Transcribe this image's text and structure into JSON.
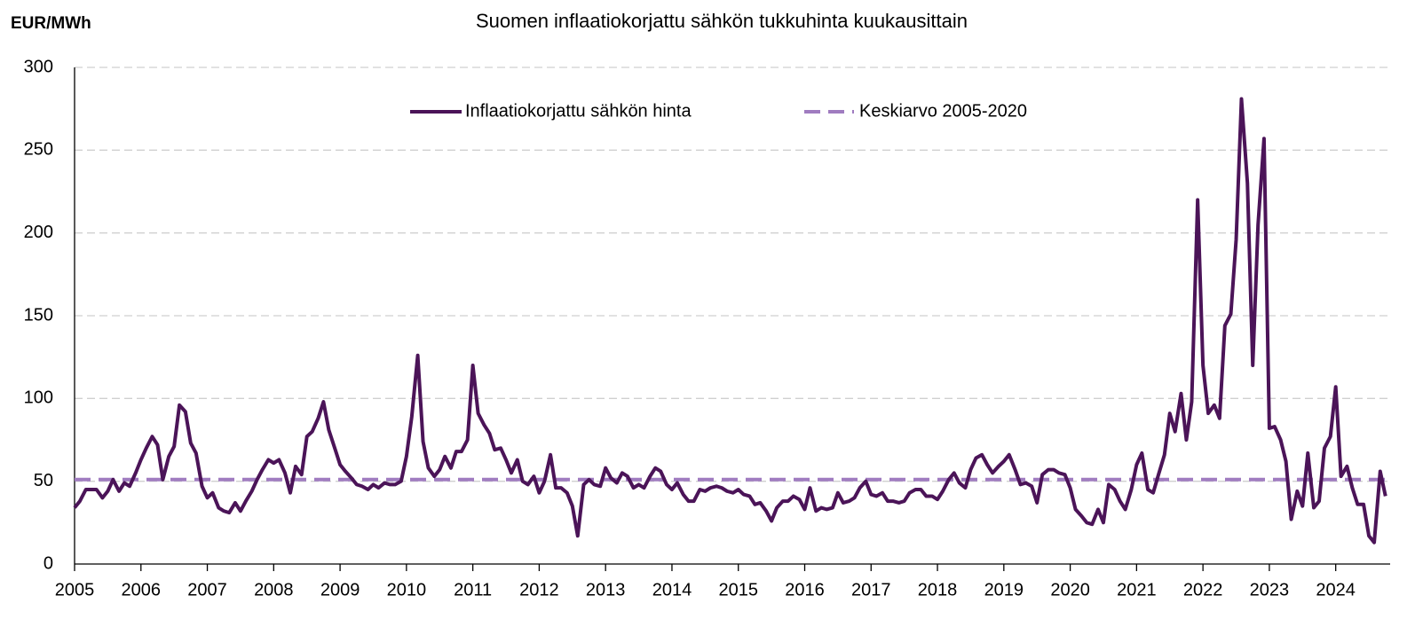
{
  "chart_data": {
    "type": "line",
    "title": "Suomen inflaatiokorjattu sähkön tukkuhinta kuukausittain",
    "y_label": "EUR/MWh",
    "xlim": [
      2005,
      2024.82
    ],
    "xticks": [
      2005,
      2006,
      2007,
      2008,
      2009,
      2010,
      2011,
      2012,
      2013,
      2014,
      2015,
      2016,
      2017,
      2018,
      2019,
      2020,
      2021,
      2022,
      2023,
      2024
    ],
    "ylim": [
      0,
      300
    ],
    "yticks": [
      0,
      50,
      100,
      150,
      200,
      250,
      300
    ],
    "grid": true,
    "legend": "top",
    "x": [
      2005,
      2005.08,
      2005.17,
      2005.25,
      2005.33,
      2005.42,
      2005.5,
      2005.58,
      2005.67,
      2005.75,
      2005.83,
      2005.92,
      2006,
      2006.08,
      2006.17,
      2006.25,
      2006.33,
      2006.42,
      2006.5,
      2006.58,
      2006.67,
      2006.75,
      2006.83,
      2006.92,
      2007,
      2007.08,
      2007.17,
      2007.25,
      2007.33,
      2007.42,
      2007.5,
      2007.58,
      2007.67,
      2007.75,
      2007.83,
      2007.92,
      2008,
      2008.08,
      2008.17,
      2008.25,
      2008.33,
      2008.42,
      2008.5,
      2008.58,
      2008.67,
      2008.75,
      2008.83,
      2008.92,
      2009,
      2009.08,
      2009.17,
      2009.25,
      2009.33,
      2009.42,
      2009.5,
      2009.58,
      2009.67,
      2009.75,
      2009.83,
      2009.92,
      2010,
      2010.08,
      2010.17,
      2010.25,
      2010.33,
      2010.42,
      2010.5,
      2010.58,
      2010.67,
      2010.75,
      2010.83,
      2010.92,
      2011,
      2011.08,
      2011.17,
      2011.25,
      2011.33,
      2011.42,
      2011.5,
      2011.58,
      2011.67,
      2011.75,
      2011.83,
      2011.92,
      2012,
      2012.08,
      2012.17,
      2012.25,
      2012.33,
      2012.42,
      2012.5,
      2012.58,
      2012.67,
      2012.75,
      2012.83,
      2012.92,
      2013,
      2013.08,
      2013.17,
      2013.25,
      2013.33,
      2013.42,
      2013.5,
      2013.58,
      2013.67,
      2013.75,
      2013.83,
      2013.92,
      2014,
      2014.08,
      2014.17,
      2014.25,
      2014.33,
      2014.42,
      2014.5,
      2014.58,
      2014.67,
      2014.75,
      2014.83,
      2014.92,
      2015,
      2015.08,
      2015.17,
      2015.25,
      2015.33,
      2015.42,
      2015.5,
      2015.58,
      2015.67,
      2015.75,
      2015.83,
      2015.92,
      2016,
      2016.08,
      2016.17,
      2016.25,
      2016.33,
      2016.42,
      2016.5,
      2016.58,
      2016.67,
      2016.75,
      2016.83,
      2016.92,
      2017,
      2017.08,
      2017.17,
      2017.25,
      2017.33,
      2017.42,
      2017.5,
      2017.58,
      2017.67,
      2017.75,
      2017.83,
      2017.92,
      2018,
      2018.08,
      2018.17,
      2018.25,
      2018.33,
      2018.42,
      2018.5,
      2018.58,
      2018.67,
      2018.75,
      2018.83,
      2018.92,
      2019,
      2019.08,
      2019.17,
      2019.25,
      2019.33,
      2019.42,
      2019.5,
      2019.58,
      2019.67,
      2019.75,
      2019.83,
      2019.92,
      2020,
      2020.08,
      2020.17,
      2020.25,
      2020.33,
      2020.42,
      2020.5,
      2020.58,
      2020.67,
      2020.75,
      2020.83,
      2020.92,
      2021,
      2021.08,
      2021.17,
      2021.25,
      2021.33,
      2021.42,
      2021.5,
      2021.58,
      2021.67,
      2021.75,
      2021.83,
      2021.92,
      2022,
      2022.08,
      2022.17,
      2022.25,
      2022.33,
      2022.42,
      2022.5,
      2022.58,
      2022.67,
      2022.75,
      2022.83,
      2022.92,
      2023,
      2023.08,
      2023.17,
      2023.25,
      2023.33,
      2023.42,
      2023.5,
      2023.58,
      2023.67,
      2023.75,
      2023.83,
      2023.92,
      2024,
      2024.08,
      2024.17,
      2024.25,
      2024.33,
      2024.42,
      2024.5,
      2024.58,
      2024.67,
      2024.75
    ],
    "series": [
      {
        "name": "Inflaatiokorjattu sähkön hinta",
        "color": "#4b1458",
        "values": [
          34,
          38,
          45,
          45,
          45,
          40,
          44,
          51,
          44,
          49,
          47,
          55,
          63,
          70,
          77,
          72,
          51,
          65,
          71,
          96,
          92,
          73,
          67,
          47,
          40,
          43,
          34,
          32,
          31,
          37,
          32,
          38,
          44,
          51,
          57,
          63,
          61,
          63,
          55,
          43,
          59,
          54,
          77,
          80,
          88,
          98,
          81,
          70,
          60,
          56,
          52,
          48,
          47,
          45,
          48,
          46,
          49,
          48,
          48,
          50,
          65,
          89,
          126,
          74,
          58,
          53,
          57,
          65,
          58,
          68,
          68,
          75,
          120,
          91,
          84,
          79,
          69,
          70,
          63,
          55,
          63,
          50,
          48,
          53,
          43,
          50,
          66,
          46,
          46,
          43,
          35,
          17,
          48,
          51,
          48,
          47,
          58,
          52,
          49,
          55,
          53,
          46,
          48,
          46,
          53,
          58,
          56,
          48,
          45,
          49,
          42,
          38,
          38,
          45,
          44,
          46,
          47,
          46,
          44,
          43,
          45,
          42,
          41,
          36,
          37,
          32,
          26,
          34,
          38,
          38,
          41,
          39,
          33,
          46,
          32,
          34,
          33,
          34,
          43,
          37,
          38,
          40,
          46,
          50,
          42,
          41,
          43,
          38,
          38,
          37,
          38,
          43,
          45,
          45,
          41,
          41,
          39,
          44,
          51,
          55,
          49,
          46,
          57,
          64,
          66,
          60,
          55,
          59,
          62,
          66,
          57,
          48,
          49,
          47,
          37,
          54,
          57,
          57,
          55,
          54,
          46,
          33,
          29,
          25,
          24,
          33,
          25,
          48,
          45,
          38,
          33,
          45,
          60,
          67,
          45,
          43,
          54,
          66,
          91,
          80,
          103,
          75,
          98,
          220,
          120,
          91,
          96,
          88,
          144,
          151,
          196,
          281,
          230,
          120,
          205,
          257,
          82,
          83,
          75,
          62,
          27,
          44,
          35,
          67,
          34,
          38,
          70,
          77,
          107,
          53,
          59,
          46,
          36,
          36,
          17,
          13,
          56,
          41
        ]
      }
    ],
    "reference_lines": [
      {
        "name": "Keskiarvo 2005-2020",
        "value": 51,
        "color": "#a07cc0",
        "dashed": true
      }
    ]
  }
}
